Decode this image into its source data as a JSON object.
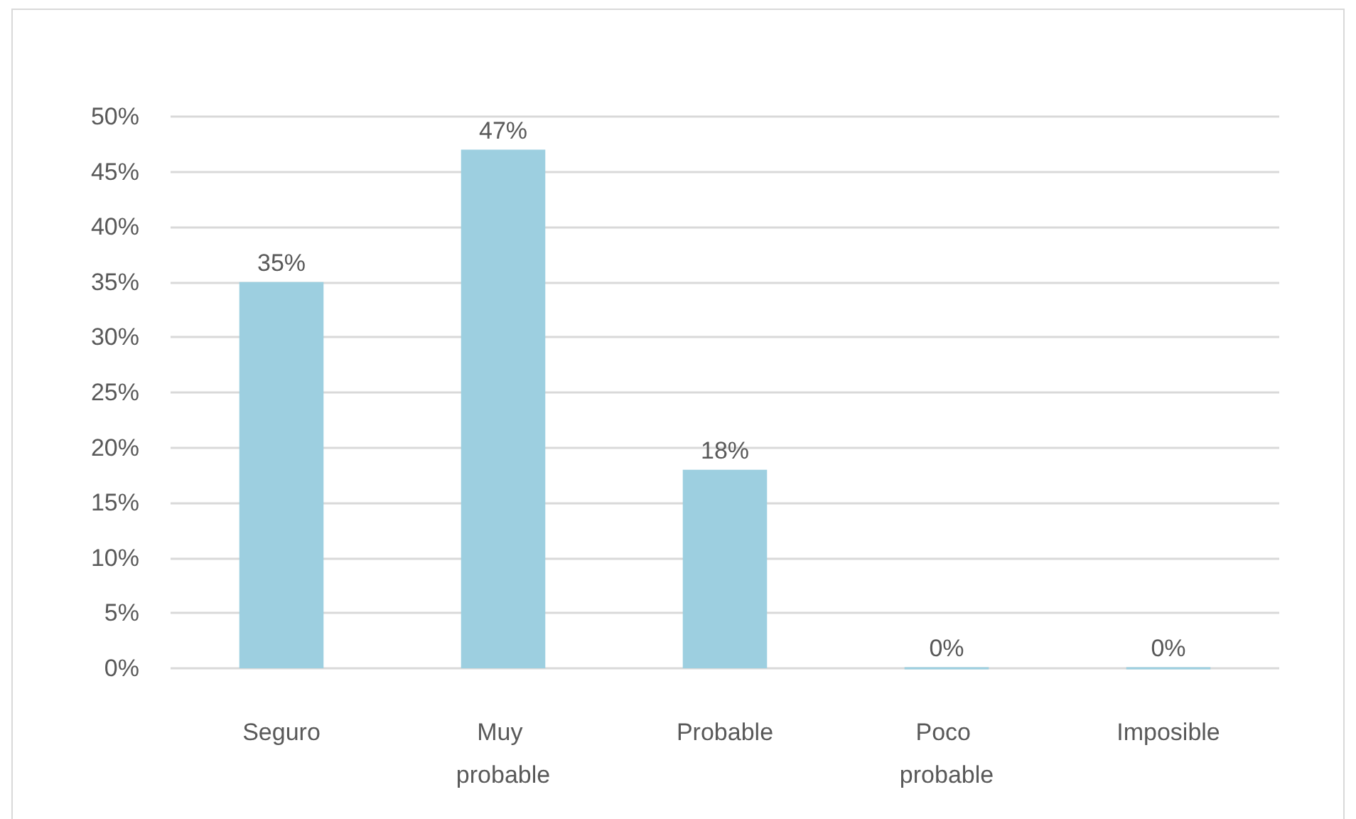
{
  "chart_data": {
    "type": "bar",
    "categories": [
      "Seguro",
      "Muy probable",
      "Probable",
      "Poco probable",
      "Imposible"
    ],
    "values": [
      35,
      47,
      18,
      0,
      0
    ],
    "value_labels": [
      "35%",
      "47%",
      "18%",
      "0%",
      "0%"
    ],
    "color": "#9dcfe0",
    "ylim": [
      0,
      50
    ],
    "yticks": [
      {
        "value": 0,
        "label": "0%"
      },
      {
        "value": 5,
        "label": "5%"
      },
      {
        "value": 10,
        "label": "10%"
      },
      {
        "value": 15,
        "label": "15%"
      },
      {
        "value": 20,
        "label": "20%"
      },
      {
        "value": 25,
        "label": "25%"
      },
      {
        "value": 30,
        "label": "30%"
      },
      {
        "value": 35,
        "label": "35%"
      },
      {
        "value": 40,
        "label": "40%"
      },
      {
        "value": 45,
        "label": "45%"
      },
      {
        "value": 50,
        "label": "50%"
      }
    ],
    "grid": "y"
  }
}
